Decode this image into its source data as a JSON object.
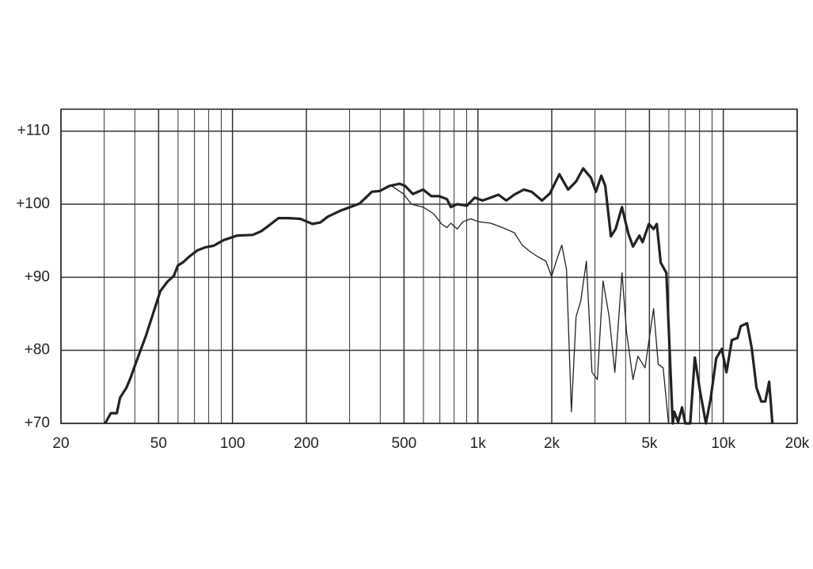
{
  "chart_data": {
    "type": "line",
    "xscale": "log",
    "xlim": [
      20,
      20000
    ],
    "ylim": [
      70,
      113
    ],
    "xticks": [
      20,
      50,
      100,
      200,
      500,
      {
        "value": 1000,
        "label": "1k"
      },
      {
        "value": 2000,
        "label": "2k"
      },
      {
        "value": 5000,
        "label": "5k"
      },
      {
        "value": 10000,
        "label": "10k"
      },
      {
        "value": 20000,
        "label": "20k"
      }
    ],
    "xgrid_minor": [
      30,
      40,
      60,
      70,
      80,
      90,
      300,
      400,
      600,
      700,
      800,
      900,
      3000,
      4000,
      6000,
      7000,
      8000,
      9000
    ],
    "yticks": [
      {
        "value": 70,
        "label": "+70"
      },
      {
        "value": 80,
        "label": "+80"
      },
      {
        "value": 90,
        "label": "+90"
      },
      {
        "value": 100,
        "label": "+100"
      },
      {
        "value": 110,
        "label": "+110"
      }
    ],
    "grid": true,
    "series": [
      {
        "color": "#222222",
        "x": [
          30.3,
          31.9,
          33.8,
          34.8,
          37,
          38.4,
          40.4,
          44.5,
          50.8,
          54.3,
          57.7,
          59.9,
          63.1,
          67,
          72.1,
          77.6,
          83.7,
          92.2,
          104.5,
          121,
          131,
          141,
          154,
          169,
          189,
          212,
          228,
          245,
          275,
          296,
          330,
          370,
          398,
          436,
          480,
          505,
          543,
          598,
          646,
          695,
          748,
          776,
          824,
          902,
          971,
          1045,
          1127,
          1213,
          1306,
          1406,
          1538,
          1656,
          1824,
          1968,
          2148,
          2333,
          2512,
          2685,
          2891,
          3027,
          3184,
          3304,
          3483,
          3639,
          3864,
          4102,
          4285,
          4550,
          4688,
          4977,
          5200,
          5358,
          5559,
          5861,
          6223,
          6310,
          6546,
          6792,
          6998,
          7330,
          7656,
          8054,
          8492,
          8872,
          9354,
          9862,
          10300,
          10840,
          11430,
          11780,
          12500,
          13060,
          13650,
          14290,
          14830,
          15380,
          15850
        ],
        "values": [
          70,
          71.4,
          71.4,
          73.5,
          74.9,
          76.2,
          78.3,
          82.1,
          88.1,
          89.4,
          90.2,
          91.6,
          92.1,
          92.9,
          93.7,
          94.1,
          94.3,
          95.1,
          95.7,
          95.8,
          96.3,
          97.1,
          98.1,
          98.1,
          98,
          97.3,
          97.5,
          98.3,
          99.1,
          99.5,
          100.1,
          101.7,
          101.8,
          102.5,
          102.8,
          102.5,
          101.4,
          102,
          101.1,
          101.1,
          100.7,
          99.6,
          100,
          99.8,
          100.9,
          100.5,
          100.9,
          101.3,
          100.5,
          101.3,
          102,
          101.7,
          100.5,
          101.5,
          104.1,
          102,
          103.1,
          104.9,
          103.6,
          101.7,
          103.9,
          102.5,
          95.6,
          96.6,
          99.6,
          96,
          94.2,
          95.7,
          94.8,
          97.3,
          96.6,
          97.3,
          92,
          90.6,
          70,
          71.6,
          70.2,
          72.2,
          70,
          70,
          79,
          74.3,
          70,
          73.3,
          78.9,
          80.2,
          77,
          81.4,
          81.7,
          83.3,
          83.7,
          80.3,
          74.9,
          73,
          73,
          75.7,
          70
        ]
      },
      {
        "color": "#222222",
        "x": [
          445,
          498,
          536,
          598,
          660,
          711,
          748,
          776,
          824,
          869,
          935,
          1007,
          1127,
          1259,
          1406,
          1516,
          1633,
          1758,
          1893,
          1995,
          2086,
          2198,
          2296,
          2404,
          2512,
          2626,
          2767,
          2917,
          3069,
          3236,
          3428,
          3614,
          3864,
          4036,
          4285,
          4487,
          4797,
          5200,
          5433,
          5689,
          5984
        ],
        "values": [
          102.5,
          101.4,
          100,
          99.6,
          98.7,
          97.3,
          96.8,
          97.4,
          96.6,
          97.6,
          98,
          97.6,
          97.4,
          96.8,
          96.1,
          94.4,
          93.5,
          92.8,
          92.2,
          90.1,
          92.2,
          94.4,
          91.1,
          71.6,
          84.6,
          86.8,
          92.2,
          77,
          76,
          89.5,
          84.6,
          77,
          90.6,
          82.5,
          76,
          79.2,
          77.6,
          85.7,
          78.1,
          77.6,
          70
        ]
      }
    ]
  }
}
